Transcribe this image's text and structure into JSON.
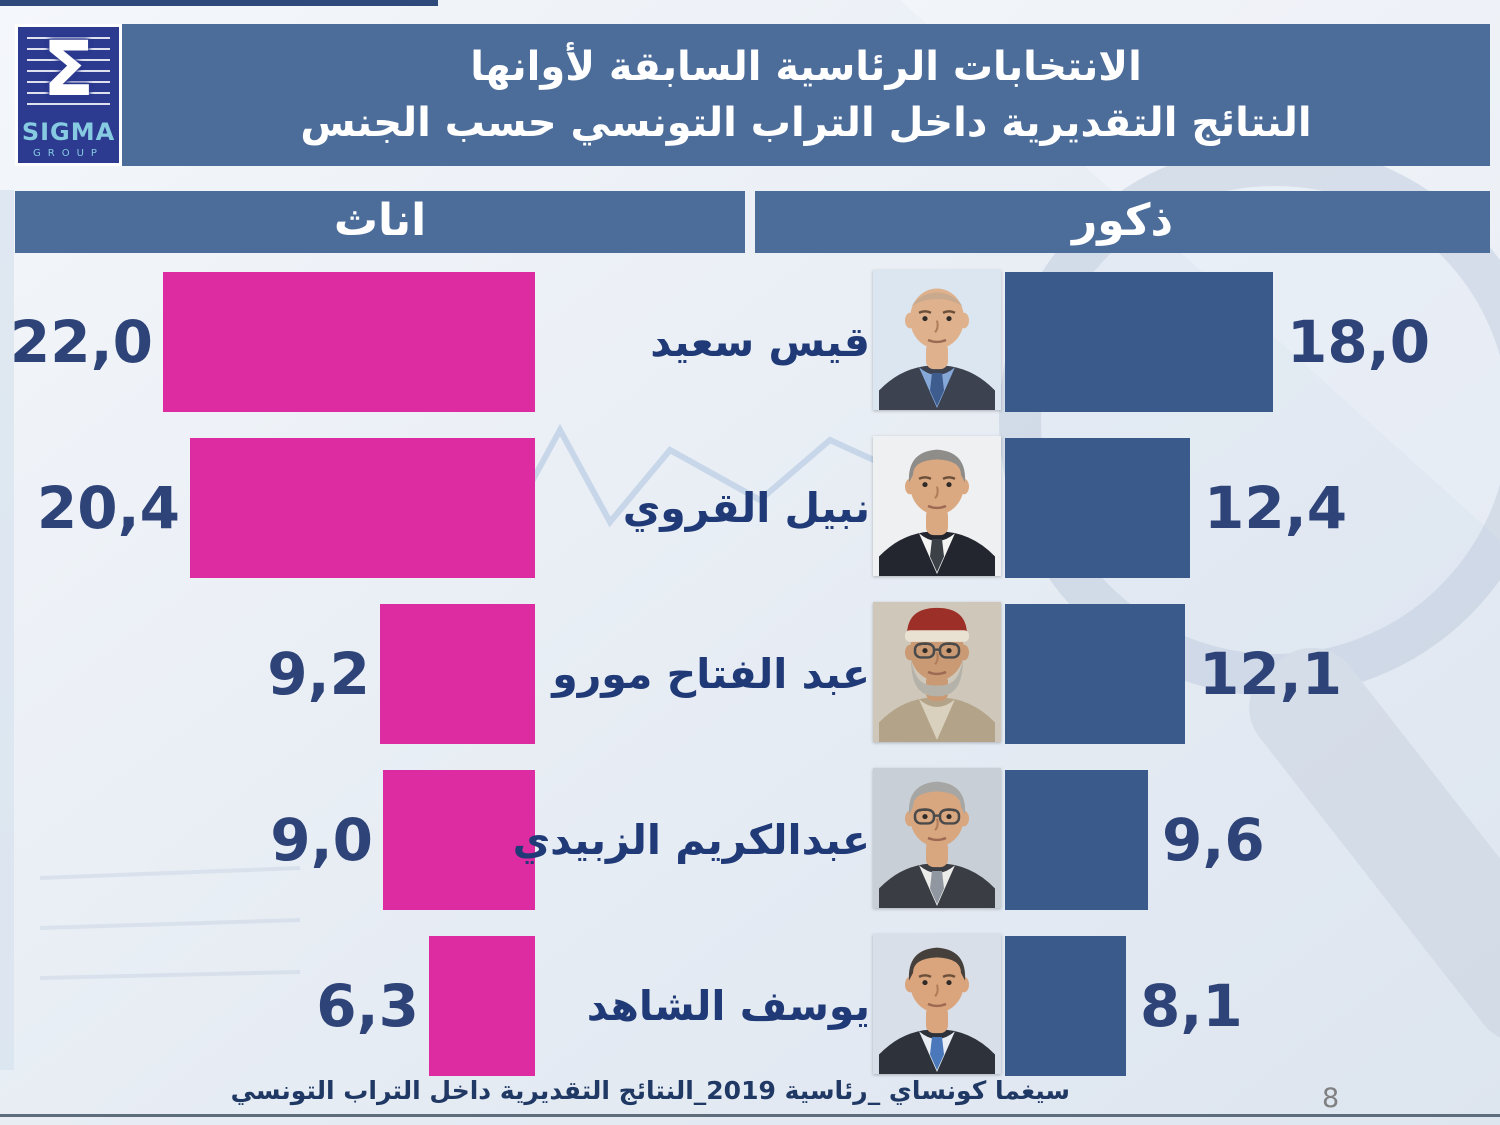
{
  "slide": {
    "logo": {
      "symbol": "Σ",
      "brand": "SIGMA",
      "subbrand": "GROUP"
    },
    "title_line1": "الانتخابات الرئاسية السابقة لأوانها",
    "title_line2": "النتائج التقديرية داخل التراب التونسي حسب الجنس",
    "footer": "سيغما كونساي _رئاسية 2019_النتائج التقديرية داخل التراب التونسي",
    "page_number": "8"
  },
  "chart_data": {
    "type": "bar",
    "orientation": "horizontal-tornado",
    "title": "الانتخابات الرئاسية السابقة لأوانها - النتائج التقديرية داخل التراب التونسي حسب الجنس",
    "column_headers": {
      "left": "اناث",
      "right": "ذكور"
    },
    "categories": [
      "قيس سعيد",
      "نبيل القروي",
      "عبد الفتاح مورو",
      "عبدالكريم الزبيدي",
      "يوسف الشاهد"
    ],
    "series": [
      {
        "name": "اناث",
        "values": [
          22.0,
          20.4,
          9.2,
          9.0,
          6.3
        ]
      },
      {
        "name": "ذكور",
        "values": [
          18.0,
          12.4,
          12.1,
          9.6,
          8.1
        ]
      }
    ],
    "value_labels": {
      "females": [
        "22,0",
        "20,4",
        "9,2",
        "9,0",
        "6,3"
      ],
      "males": [
        "18,0",
        "12,4",
        "12,1",
        "9,6",
        "8,1"
      ]
    },
    "colors": {
      "female_bar": "#dd2ca2",
      "male_bar": "#3a5a8c",
      "header_band": "#4c6d99",
      "value_text": "#2e4378",
      "name_text": "#1f3a76"
    },
    "grid": false,
    "legend_position": "top"
  },
  "portraits": [
    {
      "alt": "portrait-kais-saied",
      "bg": "#dce6f0",
      "skin": "#dfb28d",
      "hair": "bald",
      "hairColor": "#b0a090",
      "beard": null,
      "glasses": false,
      "hat": false,
      "hatColor": null,
      "hatBand": null,
      "suit": "#3c4250",
      "shirt": "#85a8d8",
      "tie": "#3f5c8e"
    },
    {
      "alt": "portrait-nabil-karoui",
      "bg": "#eef0f2",
      "skin": "#dba981",
      "hair": "full",
      "hairColor": "#8f8d8a",
      "beard": null,
      "glasses": false,
      "hat": false,
      "hatColor": null,
      "hatBand": null,
      "suit": "#23262e",
      "shirt": "#f4f4f2",
      "tie": "#3c4148"
    },
    {
      "alt": "portrait-abdelfattah-mourou",
      "bg": "#cfc8ba",
      "skin": "#c99a74",
      "hair": "none",
      "hairColor": "#b9b6ae",
      "beard": "#b5b2a9",
      "glasses": true,
      "hat": true,
      "hatColor": "#9c2f27",
      "hatBand": "#e9e2d2",
      "suit": "#b3a489",
      "shirt": "#d9d0bd",
      "tie": null
    },
    {
      "alt": "portrait-abdelkarim-zbidi",
      "bg": "#c9cfd6",
      "skin": "#d8a67f",
      "hair": "full",
      "hairColor": "#a6a6a4",
      "beard": null,
      "glasses": true,
      "hat": false,
      "hatColor": null,
      "hatBand": null,
      "suit": "#3a3e44",
      "shirt": "#ececea",
      "tie": "#9097a0"
    },
    {
      "alt": "portrait-youssef-chahed",
      "bg": "#d8dfe8",
      "skin": "#daa47d",
      "hair": "dark",
      "hairColor": "#46403c",
      "beard": null,
      "glasses": false,
      "hat": false,
      "hatColor": null,
      "hatBand": null,
      "suit": "#2e323a",
      "shirt": "#e8edf3",
      "tie": "#4a78ba"
    }
  ]
}
